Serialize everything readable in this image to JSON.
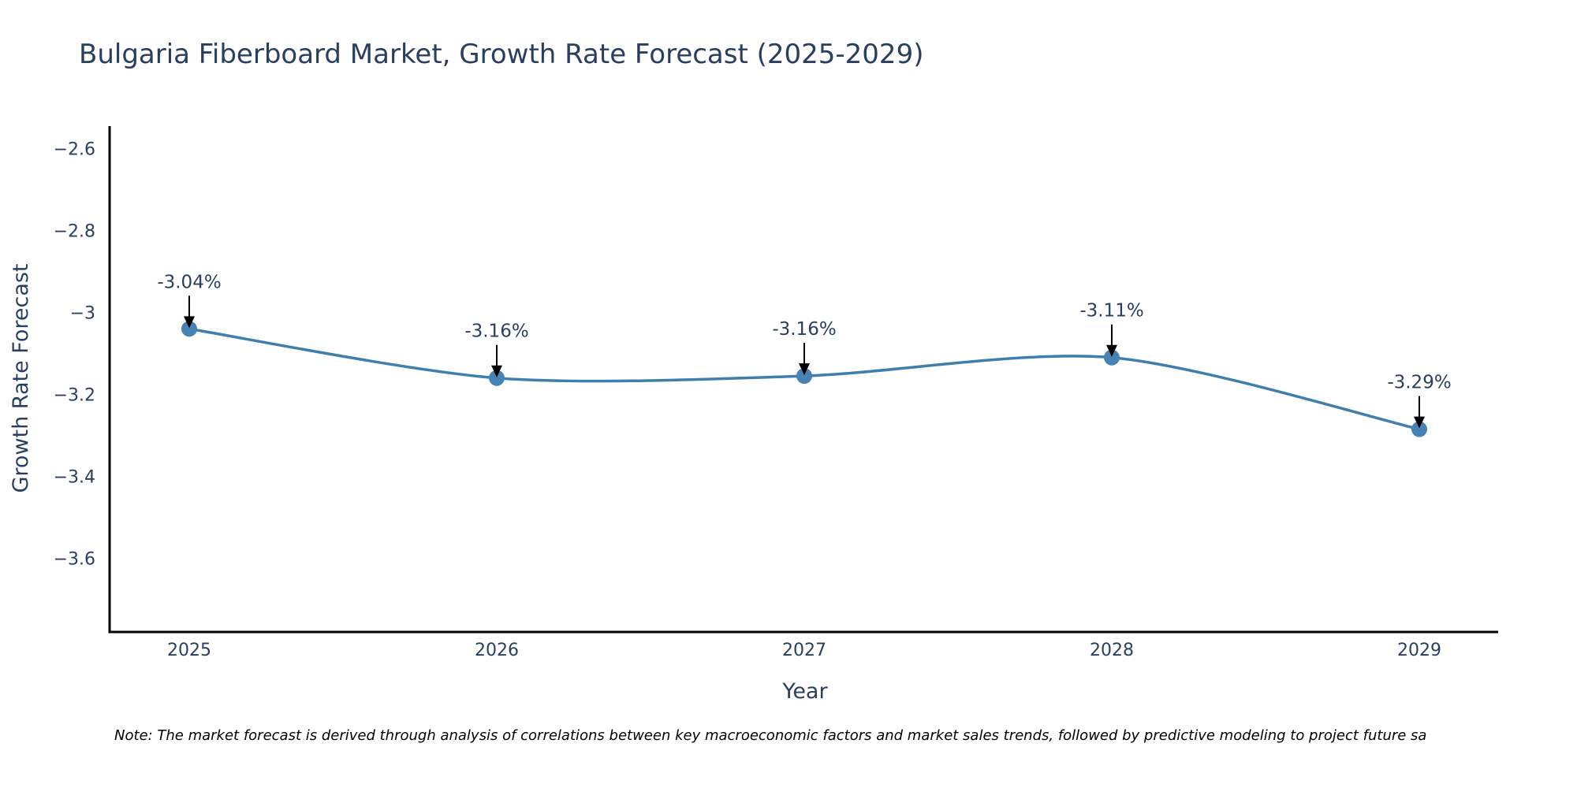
{
  "chart_data": {
    "type": "line",
    "title": "Bulgaria Fiberboard Market, Growth Rate Forecast (2025-2029)",
    "xlabel": "Year",
    "ylabel": "Growth Rate Forecast",
    "x": [
      "2025",
      "2026",
      "2027",
      "2028",
      "2029"
    ],
    "values": [
      -3.04,
      -3.16,
      -3.155,
      -3.11,
      -3.285
    ],
    "data_labels": [
      "-3.04%",
      "-3.16%",
      "-3.16%",
      "-3.11%",
      "-3.29%"
    ],
    "ylim": [
      -3.78,
      -2.545
    ],
    "yticks": [
      -2.6,
      -2.8,
      -3.0,
      -3.2,
      -3.4,
      -3.6
    ],
    "ytick_labels": [
      "−2.6",
      "−2.8",
      "−3",
      "−3.2",
      "−3.4",
      "−3.6"
    ],
    "line_shape": "spline",
    "grid": false,
    "note": "Note: The market forecast is derived through analysis of correlations between key macroeconomic factors and market sales trends, followed by predictive modeling to project future sa"
  },
  "colors": {
    "line": "#3f7fad",
    "marker": "#4682b4",
    "axis": "#000000",
    "text": "#2a3f5f",
    "arrow": "#000000"
  }
}
